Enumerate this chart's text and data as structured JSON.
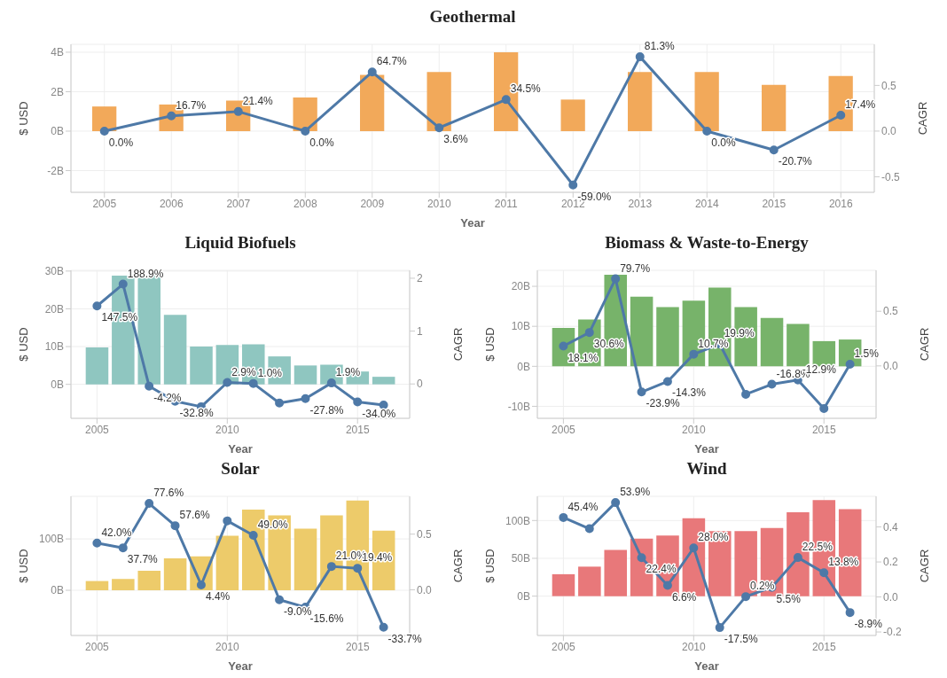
{
  "chart_data": [
    {
      "type": "bar",
      "title": "Geothermal",
      "xlabel": "Year",
      "ylabel": "$ USD",
      "y2label": "CAGR",
      "categories": [
        "2005",
        "2006",
        "2007",
        "2008",
        "2009",
        "2010",
        "2011",
        "2012",
        "2013",
        "2014",
        "2015",
        "2016"
      ],
      "series": [
        {
          "color": "#f2a95a",
          "values": [
            1.25,
            1.35,
            1.55,
            1.7,
            2.85,
            3.0,
            4.0,
            1.6,
            3.0,
            3.0,
            2.35,
            2.8
          ]
        },
        {
          "type": "line",
          "axis": "y2",
          "color": "#4e79a7",
          "marker": "circle",
          "values": [
            0.0,
            0.167,
            0.214,
            0.0,
            0.647,
            0.036,
            0.345,
            -0.59,
            0.813,
            0.0,
            -0.207,
            0.174
          ],
          "value_labels": [
            "0.0%",
            "16.7%",
            "21.4%",
            "0.0%",
            "64.7%",
            "3.6%",
            "34.5%",
            "-59.0%",
            "81.3%",
            "0.0%",
            "-20.7%",
            "17.4%"
          ]
        }
      ],
      "ylim": [
        -3.1,
        4.4
      ],
      "yticks": [
        {
          "value": -2,
          "label": "-2B"
        },
        {
          "value": 0,
          "label": "0B"
        },
        {
          "value": 2,
          "label": "2B"
        },
        {
          "value": 4,
          "label": "4B"
        }
      ],
      "y2lim": [
        -0.67,
        0.95
      ],
      "y2ticks": [
        {
          "value": -0.5,
          "label": "-0.5"
        },
        {
          "value": 0,
          "label": "0.0"
        },
        {
          "value": 0.5,
          "label": "0.5"
        }
      ],
      "grid": true
    },
    {
      "type": "bar",
      "title": "Liquid Biofuels",
      "xlabel": "Year",
      "ylabel": "$ USD",
      "y2label": "CAGR",
      "x": [
        2005,
        2006,
        2007,
        2008,
        2009,
        2010,
        2011,
        2012,
        2013,
        2014,
        2015,
        2016
      ],
      "series": [
        {
          "color": "#8fc6c0",
          "values": [
            9.8,
            28.8,
            28.8,
            18.4,
            10.0,
            10.4,
            10.6,
            7.4,
            5.0,
            5.2,
            3.4,
            2.0
          ]
        },
        {
          "type": "line",
          "axis": "y2",
          "color": "#4e79a7",
          "marker": "circle",
          "values": [
            1.475,
            1.889,
            -0.042,
            -0.328,
            -0.43,
            0.029,
            0.01,
            -0.36,
            -0.278,
            0.019,
            -0.34,
            -0.4
          ],
          "value_labels": [
            "147.5%",
            "188.9%",
            "-4.2%",
            "-32.8%",
            null,
            "2.9%",
            "1.0%",
            null,
            "-27.8%",
            "1.9%",
            "-34.0%",
            null
          ]
        }
      ],
      "xlim": [
        2004,
        2017
      ],
      "xticks": [
        2005,
        2010,
        2015
      ],
      "ylim": [
        -9,
        30.2
      ],
      "yticks": [
        {
          "value": 0,
          "label": "0B"
        },
        {
          "value": 10,
          "label": "10B"
        },
        {
          "value": 20,
          "label": "20B"
        },
        {
          "value": 30,
          "label": "30B"
        }
      ],
      "y2lim": [
        -0.65,
        2.15
      ],
      "y2ticks": [
        0,
        1,
        2
      ],
      "grid": true
    },
    {
      "type": "bar",
      "title": "Biomass & Waste-to-Energy",
      "xlabel": "Year",
      "ylabel": "$ USD",
      "y2label": "CAGR",
      "x": [
        2005,
        2006,
        2007,
        2008,
        2009,
        2010,
        2011,
        2012,
        2013,
        2014,
        2015,
        2016
      ],
      "series": [
        {
          "color": "#77b36a",
          "values": [
            9.6,
            11.7,
            22.9,
            17.4,
            14.8,
            16.4,
            19.7,
            14.8,
            12.1,
            10.6,
            6.3,
            6.7
          ]
        },
        {
          "type": "line",
          "axis": "y2",
          "color": "#4e79a7",
          "marker": "circle",
          "values": [
            0.181,
            0.306,
            0.797,
            -0.239,
            -0.143,
            0.107,
            0.199,
            -0.26,
            -0.168,
            -0.129,
            -0.39,
            0.015
          ],
          "value_labels": [
            "18.1%",
            "30.6%",
            "79.7%",
            "-23.9%",
            "-14.3%",
            "10.7%",
            "19.9%",
            null,
            "-16.8%",
            "-12.9%",
            null,
            "1.5%"
          ]
        }
      ],
      "xlim": [
        2004,
        2017
      ],
      "xticks": [
        2005,
        2010,
        2015
      ],
      "ylim": [
        -13,
        24
      ],
      "yticks": [
        {
          "value": -10,
          "label": "-10B"
        },
        {
          "value": 0,
          "label": "0B"
        },
        {
          "value": 10,
          "label": "10B"
        },
        {
          "value": 20,
          "label": "20B"
        }
      ],
      "y2lim": [
        -0.48,
        0.875
      ],
      "y2ticks": [
        {
          "value": 0,
          "label": "0.0"
        },
        {
          "value": 0.5,
          "label": "0.5"
        }
      ],
      "grid": true
    },
    {
      "type": "bar",
      "title": "Solar",
      "xlabel": "Year",
      "ylabel": "$ USD",
      "y2label": "CAGR",
      "x": [
        2005,
        2006,
        2007,
        2008,
        2009,
        2010,
        2011,
        2012,
        2013,
        2014,
        2015,
        2016
      ],
      "series": [
        {
          "color": "#edcb6a",
          "values": [
            18,
            22,
            38,
            62,
            66,
            106,
            157,
            146,
            120,
            146,
            175,
            116
          ]
        },
        {
          "type": "line",
          "axis": "y2",
          "color": "#4e79a7",
          "marker": "circle",
          "values": [
            0.42,
            0.377,
            0.776,
            0.576,
            0.044,
            0.62,
            0.49,
            -0.09,
            -0.156,
            0.21,
            0.194,
            -0.337
          ],
          "value_labels": [
            "42.0%",
            "37.7%",
            "77.6%",
            "57.6%",
            "4.4%",
            null,
            "49.0%",
            "-9.0%",
            "-15.6%",
            "21.0%",
            "19.4%",
            "-33.7%"
          ]
        }
      ],
      "xlim": [
        2004,
        2017
      ],
      "xticks": [
        2005,
        2010,
        2015
      ],
      "ylim": [
        -88,
        183
      ],
      "yticks": [
        {
          "value": 0,
          "label": "0B"
        },
        {
          "value": 100,
          "label": "100B"
        }
      ],
      "y2lim": [
        -0.41,
        0.84
      ],
      "y2ticks": [
        {
          "value": 0,
          "label": "0.0"
        },
        {
          "value": 0.5,
          "label": "0.5"
        }
      ],
      "grid": true
    },
    {
      "type": "bar",
      "title": "Wind",
      "xlabel": "Year",
      "ylabel": "$ USD",
      "y2label": "CAGR",
      "x": [
        2005,
        2006,
        2007,
        2008,
        2009,
        2010,
        2011,
        2012,
        2013,
        2014,
        2015,
        2016
      ],
      "series": [
        {
          "color": "#e8787a",
          "values": [
            29,
            39,
            61,
            76,
            80,
            103,
            86,
            86,
            90,
            111,
            127,
            115
          ]
        },
        {
          "type": "line",
          "axis": "y2",
          "color": "#4e79a7",
          "marker": "circle",
          "values": [
            0.454,
            0.39,
            0.539,
            0.224,
            0.066,
            0.28,
            -0.175,
            0.002,
            0.055,
            0.225,
            0.138,
            -0.089
          ],
          "value_labels": [
            "45.4%",
            null,
            "53.9%",
            "22.4%",
            "6.6%",
            "28.0%",
            "-17.5%",
            "0.2%",
            "5.5%",
            "22.5%",
            "13.8%",
            "-8.9%"
          ]
        }
      ],
      "xlim": [
        2004,
        2017
      ],
      "xticks": [
        2005,
        2010,
        2015
      ],
      "ylim": [
        -52,
        132
      ],
      "yticks": [
        {
          "value": 0,
          "label": "0B"
        },
        {
          "value": 50,
          "label": "50B"
        },
        {
          "value": 100,
          "label": "100B"
        }
      ],
      "y2lim": [
        -0.22,
        0.575
      ],
      "y2ticks": [
        {
          "value": -0.2,
          "label": "-0.2"
        },
        {
          "value": 0,
          "label": "0.0"
        },
        {
          "value": 0.2,
          "label": "0.2"
        },
        {
          "value": 0.4,
          "label": "0.4"
        }
      ],
      "grid": true
    }
  ]
}
